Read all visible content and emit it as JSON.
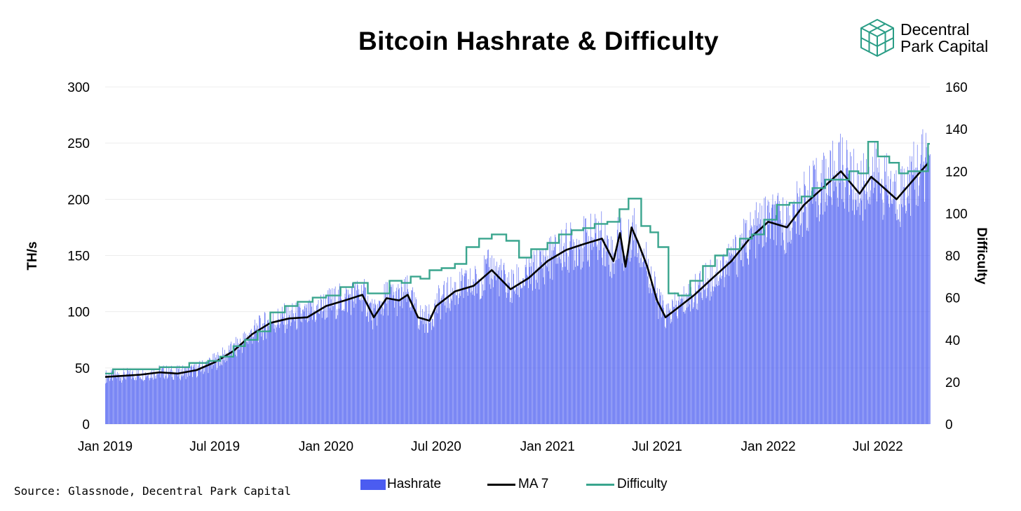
{
  "title": "Bitcoin Hashrate & Difficulty",
  "logo": {
    "line1": "Decentral",
    "line2": "Park Capital",
    "color": "#2a9d86"
  },
  "source": "Source: Glassnode, Decentral Park Capital",
  "chart_data": {
    "type": "bar",
    "ylabel": "TH/s",
    "y2label": "Difficulty",
    "ylim": [
      0,
      300
    ],
    "y2lim": [
      0,
      160
    ],
    "yticks": [
      "0",
      "50",
      "100",
      "150",
      "200",
      "250",
      "300"
    ],
    "y2ticks": [
      "0",
      "20",
      "40",
      "60",
      "80",
      "100",
      "120",
      "140",
      "160"
    ],
    "xticks": [
      "Jan 2019",
      "Jul 2019",
      "Jan 2020",
      "Jul 2020",
      "Jan 2021",
      "Jul 2021",
      "Jan 2022",
      "Jul 2022"
    ],
    "grid": true,
    "legend_position": "bottom",
    "colors": {
      "hashrate": "#4b5cf1",
      "ma7": "#000000",
      "difficulty": "#3aa58e"
    },
    "series": [
      {
        "name": "Hashrate",
        "type": "bar",
        "axis": "left"
      },
      {
        "name": "MA 7",
        "type": "line",
        "axis": "left",
        "x": [
          "2019-01-01",
          "2019-02-01",
          "2019-03-01",
          "2019-04-01",
          "2019-05-01",
          "2019-06-01",
          "2019-07-01",
          "2019-08-01",
          "2019-09-01",
          "2019-10-01",
          "2019-11-01",
          "2019-12-01",
          "2020-01-01",
          "2020-02-01",
          "2020-03-01",
          "2020-03-20",
          "2020-04-10",
          "2020-05-01",
          "2020-05-15",
          "2020-06-01",
          "2020-06-20",
          "2020-07-01",
          "2020-08-01",
          "2020-09-01",
          "2020-10-01",
          "2020-11-01",
          "2020-12-01",
          "2021-01-01",
          "2021-02-01",
          "2021-03-01",
          "2021-04-01",
          "2021-04-20",
          "2021-05-01",
          "2021-05-10",
          "2021-05-20",
          "2021-06-01",
          "2021-06-15",
          "2021-07-01",
          "2021-07-15",
          "2021-08-01",
          "2021-09-01",
          "2021-10-01",
          "2021-11-01",
          "2021-12-01",
          "2022-01-01",
          "2022-02-01",
          "2022-03-01",
          "2022-04-01",
          "2022-05-01",
          "2022-06-01",
          "2022-06-20",
          "2022-07-01",
          "2022-08-01",
          "2022-08-25",
          "2022-09-10",
          "2022-09-22"
        ],
        "values": [
          42,
          43,
          44,
          46,
          45,
          48,
          55,
          65,
          80,
          90,
          94,
          95,
          105,
          110,
          115,
          95,
          112,
          110,
          115,
          95,
          92,
          105,
          118,
          123,
          137,
          120,
          130,
          145,
          155,
          160,
          165,
          145,
          170,
          140,
          175,
          160,
          140,
          110,
          95,
          102,
          115,
          130,
          145,
          165,
          180,
          175,
          195,
          210,
          225,
          205,
          220,
          215,
          200,
          215,
          225,
          232
        ]
      },
      {
        "name": "Difficulty",
        "type": "step",
        "axis": "right",
        "x": [
          "2019-01-01",
          "2019-01-14",
          "2019-02-20",
          "2019-04-01",
          "2019-05-01",
          "2019-05-20",
          "2019-06-20",
          "2019-07-10",
          "2019-08-01",
          "2019-08-20",
          "2019-09-10",
          "2019-10-01",
          "2019-10-25",
          "2019-11-15",
          "2019-12-10",
          "2020-01-01",
          "2020-01-25",
          "2020-02-15",
          "2020-03-10",
          "2020-03-26",
          "2020-04-15",
          "2020-05-05",
          "2020-05-20",
          "2020-06-05",
          "2020-06-20",
          "2020-07-10",
          "2020-08-01",
          "2020-08-20",
          "2020-09-10",
          "2020-10-01",
          "2020-10-25",
          "2020-11-15",
          "2020-12-05",
          "2021-01-01",
          "2021-01-20",
          "2021-02-10",
          "2021-03-01",
          "2021-03-20",
          "2021-04-10",
          "2021-04-30",
          "2021-05-15",
          "2021-06-05",
          "2021-06-20",
          "2021-07-03",
          "2021-07-20",
          "2021-08-05",
          "2021-08-25",
          "2021-09-15",
          "2021-10-05",
          "2021-10-25",
          "2021-11-15",
          "2021-12-05",
          "2021-12-25",
          "2022-01-15",
          "2022-02-05",
          "2022-02-25",
          "2022-03-15",
          "2022-04-05",
          "2022-04-25",
          "2022-05-15",
          "2022-05-30",
          "2022-06-15",
          "2022-07-01",
          "2022-07-20",
          "2022-08-05",
          "2022-08-20",
          "2022-09-05",
          "2022-09-22"
        ],
        "values": [
          24,
          26,
          26,
          27,
          27,
          29,
          30,
          32,
          37,
          40,
          44,
          53,
          56,
          58,
          60,
          61,
          65,
          67,
          62,
          62,
          68,
          67,
          70,
          69,
          73,
          74,
          76,
          84,
          88,
          90,
          87,
          79,
          83,
          86,
          90,
          92,
          93,
          95,
          96,
          102,
          107,
          94,
          91,
          84,
          62,
          61,
          68,
          75,
          80,
          83,
          88,
          90,
          97,
          104,
          105,
          108,
          112,
          116,
          116,
          120,
          119,
          134,
          127,
          124,
          119,
          120,
          120,
          133
        ]
      }
    ]
  }
}
